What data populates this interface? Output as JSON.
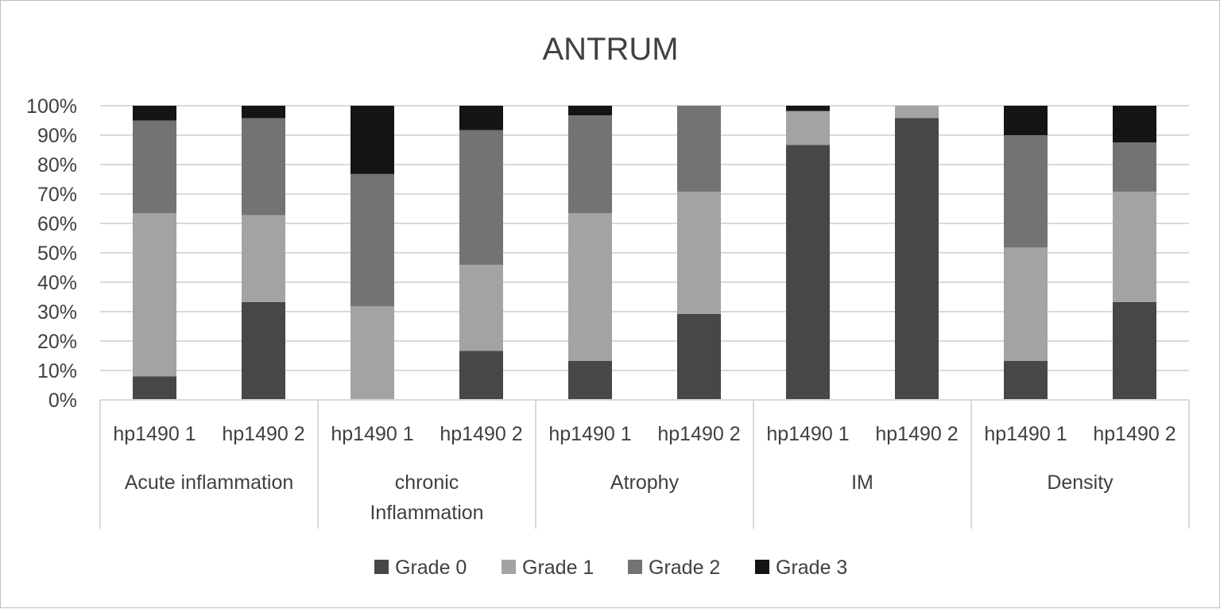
{
  "chart_data": {
    "type": "bar",
    "stacked": "percent",
    "title": "ANTRUM",
    "groups": [
      "Acute inflammation",
      "chronic Inflammation",
      "Atrophy",
      "IM",
      "Density"
    ],
    "group_label_lines": [
      [
        "Acute inflammation"
      ],
      [
        "chronic",
        "Inflammation"
      ],
      [
        "Atrophy"
      ],
      [
        "IM"
      ],
      [
        "Density"
      ]
    ],
    "categories": [
      "hp1490 1",
      "hp1490 2",
      "hp1490 1",
      "hp1490 2",
      "hp1490 1",
      "hp1490 2",
      "hp1490 1",
      "hp1490 2",
      "hp1490 1",
      "hp1490 2"
    ],
    "series": [
      {
        "name": "Grade 0",
        "color": "#474747",
        "values": [
          8,
          33.3,
          0,
          16.7,
          13.3,
          29.2,
          86.7,
          95.8,
          13.3,
          33.3
        ]
      },
      {
        "name": "Grade 1",
        "color": "#a3a3a3",
        "values": [
          55.5,
          29.5,
          31.8,
          29.2,
          50.2,
          41.6,
          11.5,
          4.2,
          38.5,
          37.5
        ]
      },
      {
        "name": "Grade 2",
        "color": "#737373",
        "values": [
          31.5,
          33,
          45,
          45.8,
          33.2,
          29.2,
          0,
          0,
          38.2,
          16.7
        ]
      },
      {
        "name": "Grade 3",
        "color": "#141414",
        "values": [
          5,
          4.2,
          23.2,
          8.3,
          3.3,
          0,
          1.8,
          0,
          10,
          12.5
        ]
      }
    ],
    "ylim": [
      0,
      100
    ],
    "y_ticks": [
      "0%",
      "10%",
      "20%",
      "30%",
      "40%",
      "50%",
      "60%",
      "70%",
      "80%",
      "90%",
      "100%"
    ],
    "grid": true,
    "legend_position": "bottom"
  }
}
